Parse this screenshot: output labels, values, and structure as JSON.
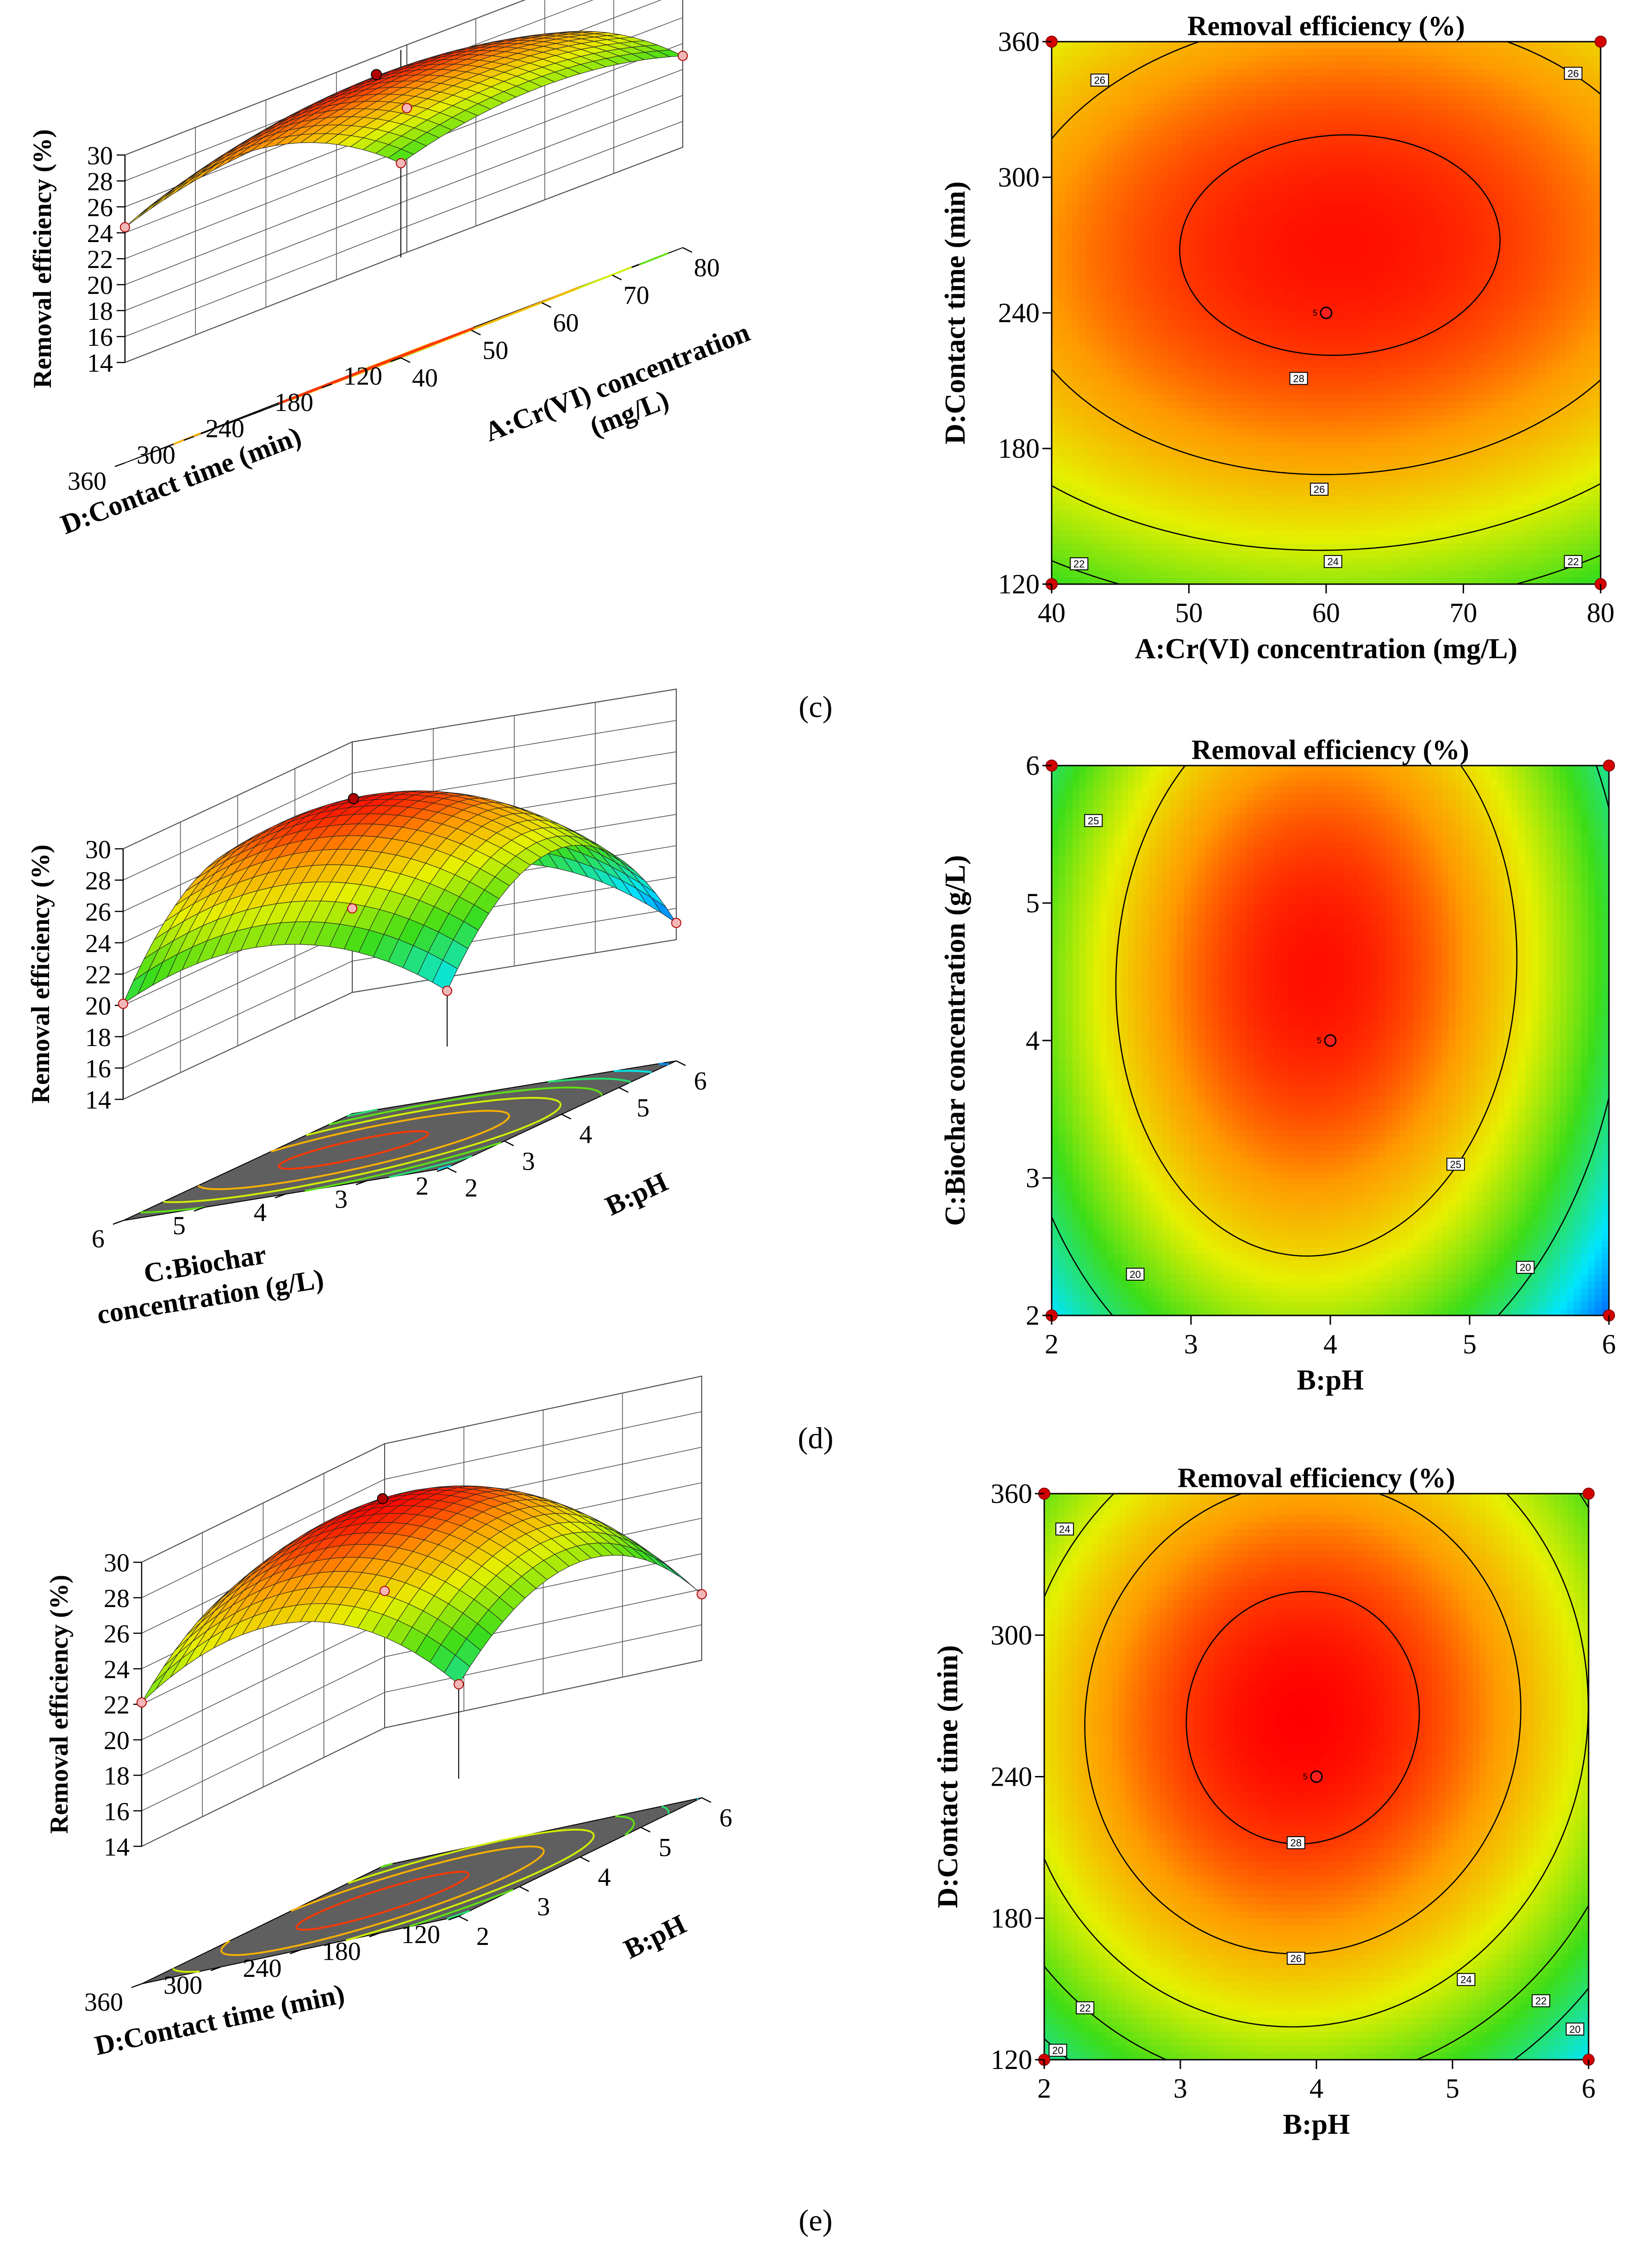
{
  "figure": {
    "panel_labels": [
      "(c)",
      "(d)",
      "(e)"
    ],
    "colors": {
      "max": "#ff0000",
      "high": "#ff9a00",
      "mid": "#e6f000",
      "low": "#3cdd18",
      "min": "#0030ff",
      "floor": "#5f5f5f"
    }
  },
  "chart_data": [
    {
      "type": "surface",
      "panel": "c",
      "zlabel": "Removal efficiency (%)",
      "xlabel": "A:Cr(VI) concentration (mg/L)",
      "xlabel_lines": [
        "A:Cr(VI) concentration",
        "(mg/L)"
      ],
      "ylabel": "D:Contact time (min)",
      "x_ticks": [
        40,
        50,
        60,
        70,
        80
      ],
      "y_ticks": [
        120,
        180,
        240,
        300,
        360
      ],
      "z_ticks": [
        14,
        16,
        18,
        20,
        22,
        24,
        26,
        28,
        30
      ],
      "xlim": [
        40,
        80
      ],
      "ylim": [
        120,
        360
      ],
      "zlim": [
        14,
        30
      ],
      "center": [
        61,
        270
      ],
      "peak": 28.6,
      "corner_values": {
        "x0y0": 21.6,
        "x1y0": 20.8,
        "x0y1": 24.8,
        "x1y1": 24.5
      }
    },
    {
      "type": "contour",
      "panel": "c",
      "title": "Removal efficiency (%)",
      "xlabel": "A:Cr(VI) concentration (mg/L)",
      "ylabel": "D:Contact time (min)",
      "x_ticks": [
        40,
        50,
        60,
        70,
        80
      ],
      "y_ticks": [
        120,
        180,
        240,
        300,
        360
      ],
      "xlim": [
        40,
        80
      ],
      "ylim": [
        120,
        360
      ],
      "contour_levels": [
        22,
        24,
        26,
        28
      ],
      "contour_labels": [
        {
          "text": "26",
          "x": 43.5,
          "y": 343
        },
        {
          "text": "26",
          "x": 78,
          "y": 346
        },
        {
          "text": "28",
          "x": 58,
          "y": 211
        },
        {
          "text": "26",
          "x": 59.5,
          "y": 162
        },
        {
          "text": "24",
          "x": 60.5,
          "y": 130
        },
        {
          "text": "22",
          "x": 42,
          "y": 129
        },
        {
          "text": "22",
          "x": 78,
          "y": 130
        }
      ],
      "design_points": [
        {
          "x": 60,
          "y": 240,
          "label": "5"
        }
      ],
      "center": [
        61,
        270
      ],
      "peak": 28.6,
      "corner_values": {
        "x0y0": 21.6,
        "x1y0": 20.8,
        "x0y1": 24.8,
        "x1y1": 24.5
      }
    },
    {
      "type": "surface",
      "panel": "d",
      "zlabel": "Removal efficiency (%)",
      "xlabel": "B:pH",
      "xlabel_lines": [
        "B:pH"
      ],
      "ylabel": "C:Biochar concentration (g/L)",
      "ylabel_lines": [
        "C:Biochar",
        "concentration (g/L)"
      ],
      "x_ticks": [
        2,
        3,
        4,
        5,
        6
      ],
      "y_ticks": [
        2,
        3,
        4,
        5,
        6
      ],
      "z_ticks": [
        14,
        16,
        18,
        20,
        22,
        24,
        26,
        28,
        30
      ],
      "xlim": [
        2,
        6
      ],
      "ylim": [
        2,
        6
      ],
      "zlim": [
        14,
        30
      ],
      "center": [
        3.9,
        4.5
      ],
      "peak": 28.6,
      "corner_values": {
        "x0y0": 18.2,
        "x1y0": 14.2,
        "x0y1": 21.7,
        "x1y1": 18.4
      }
    },
    {
      "type": "contour",
      "panel": "d",
      "title": "Removal efficiency (%)",
      "xlabel": "B:pH",
      "ylabel": "C:Biochar concentration (g/L)",
      "x_ticks": [
        2,
        3,
        4,
        5,
        6
      ],
      "y_ticks": [
        2,
        3,
        4,
        5,
        6
      ],
      "xlim": [
        2,
        6
      ],
      "ylim": [
        2,
        6
      ],
      "contour_levels": [
        20,
        25
      ],
      "contour_labels": [
        {
          "text": "25",
          "x": 2.3,
          "y": 5.6
        },
        {
          "text": "25",
          "x": 4.9,
          "y": 3.1
        },
        {
          "text": "20",
          "x": 2.6,
          "y": 2.3
        },
        {
          "text": "20",
          "x": 5.4,
          "y": 2.35
        }
      ],
      "design_points": [
        {
          "x": 4,
          "y": 4,
          "label": "5"
        }
      ],
      "center": [
        3.9,
        4.5
      ],
      "peak": 28.6,
      "corner_values": {
        "x0y0": 18.2,
        "x1y0": 14.2,
        "x0y1": 21.7,
        "x1y1": 18.4
      }
    },
    {
      "type": "surface",
      "panel": "e",
      "zlabel": "Removal efficiency (%)",
      "xlabel": "B:pH",
      "xlabel_lines": [
        "B:pH"
      ],
      "ylabel": "D:Contact time (min)",
      "x_ticks": [
        2,
        3,
        4,
        5,
        6
      ],
      "y_ticks": [
        120,
        180,
        240,
        300,
        360
      ],
      "z_ticks": [
        14,
        16,
        18,
        20,
        22,
        24,
        26,
        28,
        30
      ],
      "xlim": [
        2,
        6
      ],
      "ylim": [
        120,
        360
      ],
      "zlim": [
        14,
        30
      ],
      "center": [
        3.9,
        265
      ],
      "peak": 28.8,
      "corner_values": {
        "x0y0": 19.4,
        "x1y0": 17.6,
        "x0y1": 22.3,
        "x1y1": 21.6
      }
    },
    {
      "type": "contour",
      "panel": "e",
      "title": "Removal efficiency (%)",
      "xlabel": "B:pH",
      "ylabel": "D:Contact time (min)",
      "x_ticks": [
        2,
        3,
        4,
        5,
        6
      ],
      "y_ticks": [
        120,
        180,
        240,
        300,
        360
      ],
      "xlim": [
        2,
        6
      ],
      "ylim": [
        120,
        360
      ],
      "contour_levels": [
        20,
        22,
        24,
        26,
        28
      ],
      "contour_labels": [
        {
          "text": "24",
          "x": 2.15,
          "y": 345
        },
        {
          "text": "28",
          "x": 3.85,
          "y": 212
        },
        {
          "text": "26",
          "x": 3.85,
          "y": 163
        },
        {
          "text": "24",
          "x": 5.1,
          "y": 154
        },
        {
          "text": "22",
          "x": 5.65,
          "y": 145
        },
        {
          "text": "22",
          "x": 2.3,
          "y": 142
        },
        {
          "text": "20",
          "x": 2.1,
          "y": 124
        },
        {
          "text": "20",
          "x": 5.9,
          "y": 133
        }
      ],
      "design_points": [
        {
          "x": 4,
          "y": 240,
          "label": "5"
        }
      ],
      "center": [
        3.9,
        265
      ],
      "peak": 28.8,
      "corner_values": {
        "x0y0": 19.4,
        "x1y0": 17.6,
        "x0y1": 22.3,
        "x1y1": 21.6
      }
    }
  ]
}
